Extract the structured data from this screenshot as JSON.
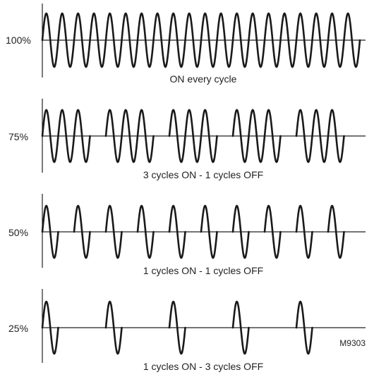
{
  "figure": {
    "reference_code": "M9303",
    "line_color": "#222222",
    "wave_color": "#1a1a1a",
    "rows": [
      {
        "level_label": "100%",
        "caption": "ON every cycle",
        "cycles_on": 1,
        "cycles_off": 0,
        "total_cycles": 20
      },
      {
        "level_label": "75%",
        "caption": "3 cycles ON - 1 cycles OFF",
        "cycles_on": 3,
        "cycles_off": 1,
        "total_cycles": 20
      },
      {
        "level_label": "50%",
        "caption": "1 cycles ON - 1 cycles OFF",
        "cycles_on": 1,
        "cycles_off": 1,
        "total_cycles": 20
      },
      {
        "level_label": "25%",
        "caption": "1 cycles ON - 3 cycles OFF",
        "cycles_on": 1,
        "cycles_off": 3,
        "total_cycles": 20
      }
    ]
  }
}
